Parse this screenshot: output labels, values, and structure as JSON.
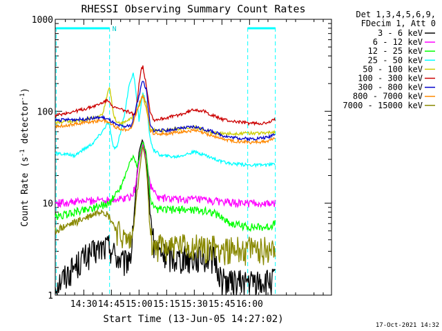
{
  "chart_data": {
    "type": "line",
    "title": "RHESSI Observing Summary Count Rates",
    "xlabel": "Start Time (13-Jun-05 14:27:02)",
    "ylabel_parts": {
      "base": "Count Rate (s",
      "sup": "-1",
      "rest": " detector",
      "close": ")"
    },
    "yscale": "log",
    "ylim": [
      1,
      1000
    ],
    "xlim_minutes": [
      14.5,
      164.5
    ],
    "x_ticks": [
      {
        "min": 30,
        "label": "14:30"
      },
      {
        "min": 45,
        "label": "14:45"
      },
      {
        "min": 60,
        "label": "15:00"
      },
      {
        "min": 75,
        "label": "15:15"
      },
      {
        "min": 90,
        "label": "15:30"
      },
      {
        "min": 105,
        "label": "15:45"
      },
      {
        "min": 120,
        "label": "16:00"
      }
    ],
    "y_ticks": [
      {
        "val": 1,
        "label": "1"
      },
      {
        "val": 10,
        "label": "10"
      },
      {
        "val": 100,
        "label": "100"
      },
      {
        "val": 1000,
        "label": "1000"
      }
    ],
    "legend_header": [
      "Det 1,3,4,5,6,9,",
      "FDecim 1, Att 0"
    ],
    "legend_position": "right",
    "timestamp": "17-Oct-2021 14:32",
    "night_marks_min": [
      15,
      44,
      119,
      134
    ],
    "saa_label": "N",
    "series": [
      {
        "name": "3 - 6 keV",
        "color": "#000000",
        "x": [
          14.5,
          30,
          40,
          44,
          48,
          52,
          56,
          58,
          60,
          62,
          64,
          66,
          68,
          72,
          80,
          90,
          100,
          105,
          110,
          120,
          125,
          130,
          134
        ],
        "y": [
          1.3,
          2.6,
          3.3,
          3.5,
          2.6,
          2.2,
          3.0,
          12.0,
          35.0,
          50.0,
          30.0,
          8.0,
          3.5,
          2.8,
          2.6,
          2.6,
          2.6,
          1.5,
          1.4,
          1.4,
          1.4,
          1.4,
          1.5
        ]
      },
      {
        "name": "6 - 12 keV",
        "color": "#ff00ff",
        "x": [
          14.5,
          30,
          40,
          44,
          50,
          56,
          58,
          60,
          62,
          64,
          66,
          70,
          80,
          90,
          100,
          105,
          110,
          120,
          130,
          134
        ],
        "y": [
          10.0,
          10.5,
          11.0,
          11.0,
          11.0,
          12.0,
          15.0,
          28.0,
          45.0,
          30.0,
          16.0,
          11.5,
          11.0,
          11.0,
          10.5,
          10.5,
          10.0,
          10.0,
          9.8,
          10.0
        ]
      },
      {
        "name": "12 - 25 keV",
        "color": "#00ff00",
        "x": [
          14.5,
          30,
          40,
          44,
          50,
          55,
          57,
          59,
          60,
          62,
          64,
          66,
          68,
          75,
          90,
          100,
          105,
          110,
          120,
          130,
          134
        ],
        "y": [
          7.0,
          8.5,
          9.5,
          10.0,
          15.0,
          28.0,
          32.0,
          25.0,
          30.0,
          47.0,
          35.0,
          12.0,
          8.5,
          8.5,
          8.5,
          8.0,
          7.0,
          6.0,
          5.5,
          5.5,
          6.0
        ]
      },
      {
        "name": "25 - 50 keV",
        "color": "#00ffff",
        "x": [
          14.5,
          25,
          35,
          40,
          43,
          44,
          46,
          48,
          52,
          55,
          57,
          58,
          60,
          62,
          64,
          66,
          68,
          72,
          80,
          90,
          95,
          100,
          105,
          110,
          120,
          130,
          134
        ],
        "y": [
          35.0,
          33.0,
          45.0,
          60.0,
          75.0,
          70.0,
          40.0,
          40.0,
          90.0,
          210.0,
          260.0,
          180.0,
          80.0,
          160.0,
          120.0,
          50.0,
          38.0,
          33.0,
          32.0,
          36.0,
          34.0,
          31.0,
          28.0,
          27.0,
          26.0,
          26.0,
          27.0
        ]
      },
      {
        "name": "50 - 100 keV",
        "color": "#cccc00",
        "x": [
          14.5,
          30,
          40,
          44,
          46,
          48,
          52,
          56,
          60,
          62,
          64,
          66,
          68,
          75,
          90,
          100,
          105,
          110,
          120,
          130,
          134
        ],
        "y": [
          75.0,
          80.0,
          90.0,
          190.0,
          95.0,
          75.0,
          75.0,
          85.0,
          110.0,
          150.0,
          105.0,
          65.0,
          62.0,
          62.0,
          68.0,
          58.0,
          57.0,
          57.0,
          58.0,
          58.0,
          60.0
        ]
      },
      {
        "name": "100 - 300 keV",
        "color": "#cc0000",
        "x": [
          14.5,
          30,
          38,
          42,
          44,
          46,
          50,
          55,
          58,
          60,
          61,
          62,
          64,
          66,
          68,
          75,
          85,
          90,
          95,
          100,
          105,
          110,
          120,
          130,
          134
        ],
        "y": [
          90.0,
          105.0,
          118.0,
          130.0,
          130.0,
          110.0,
          105.0,
          98.0,
          90.0,
          200.0,
          280.0,
          310.0,
          190.0,
          100.0,
          80.0,
          85.0,
          95.0,
          105.0,
          100.0,
          90.0,
          82.0,
          78.0,
          74.0,
          74.0,
          82.0
        ]
      },
      {
        "name": "300 - 800 keV",
        "color": "#0000cc",
        "x": [
          14.5,
          30,
          40,
          44,
          48,
          52,
          56,
          60,
          62,
          64,
          66,
          68,
          75,
          90,
          100,
          105,
          110,
          120,
          130,
          134
        ],
        "y": [
          80.0,
          82.0,
          86.0,
          80.0,
          70.0,
          68.0,
          70.0,
          150.0,
          220.0,
          170.0,
          70.0,
          62.0,
          62.0,
          68.0,
          60.0,
          55.0,
          52.0,
          50.0,
          52.0,
          58.0
        ]
      },
      {
        "name": "800 - 7000 keV",
        "color": "#ff8800",
        "x": [
          14.5,
          30,
          40,
          44,
          48,
          52,
          56,
          60,
          62,
          64,
          66,
          68,
          75,
          90,
          100,
          105,
          110,
          120,
          130,
          134
        ],
        "y": [
          68.0,
          75.0,
          80.0,
          75.0,
          66.0,
          63.0,
          66.0,
          120.0,
          150.0,
          120.0,
          62.0,
          57.0,
          57.0,
          62.0,
          54.0,
          50.0,
          48.0,
          46.0,
          47.0,
          52.0
        ]
      },
      {
        "name": "7000 - 15000 keV",
        "color": "#888800",
        "x": [
          14.5,
          28,
          35,
          40,
          44,
          48,
          52,
          56,
          60,
          62,
          64,
          66,
          68,
          75,
          85,
          90,
          100,
          105,
          110,
          120,
          130,
          134
        ],
        "y": [
          5.0,
          6.5,
          7.5,
          8.5,
          7.0,
          5.0,
          4.0,
          3.8,
          20.0,
          42.0,
          25.0,
          5.0,
          3.5,
          3.5,
          3.4,
          3.4,
          3.4,
          3.2,
          3.2,
          3.2,
          3.2,
          3.4
        ]
      }
    ]
  }
}
